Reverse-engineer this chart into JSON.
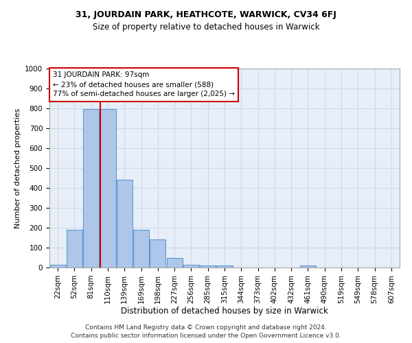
{
  "title_line1": "31, JOURDAIN PARK, HEATHCOTE, WARWICK, CV34 6FJ",
  "title_line2": "Size of property relative to detached houses in Warwick",
  "xlabel": "Distribution of detached houses by size in Warwick",
  "ylabel": "Number of detached properties",
  "footer_line1": "Contains HM Land Registry data © Crown copyright and database right 2024.",
  "footer_line2": "Contains public sector information licensed under the Open Government Licence v3.0.",
  "categories": [
    "22sqm",
    "52sqm",
    "81sqm",
    "110sqm",
    "139sqm",
    "169sqm",
    "198sqm",
    "227sqm",
    "256sqm",
    "285sqm",
    "315sqm",
    "344sqm",
    "373sqm",
    "402sqm",
    "432sqm",
    "461sqm",
    "490sqm",
    "519sqm",
    "549sqm",
    "578sqm",
    "607sqm"
  ],
  "values": [
    15,
    190,
    795,
    795,
    440,
    190,
    140,
    50,
    15,
    10,
    10,
    0,
    0,
    0,
    0,
    10,
    0,
    0,
    0,
    0,
    0
  ],
  "bar_color": "#aec6e8",
  "bar_edge_color": "#5b9bd5",
  "grid_color": "#d0d8e8",
  "background_color": "#e8eef8",
  "property_label": "31 JOURDAIN PARK: 97sqm",
  "property_line2": "← 23% of detached houses are smaller (588)",
  "property_line3": "77% of semi-detached houses are larger (2,025) →",
  "annotation_box_color": "#cc0000",
  "vline_color": "#cc0000",
  "vline_x": 2.55,
  "ylim": [
    0,
    1000
  ],
  "yticks": [
    0,
    100,
    200,
    300,
    400,
    500,
    600,
    700,
    800,
    900,
    1000
  ],
  "title1_fontsize": 9,
  "title2_fontsize": 8.5,
  "ylabel_fontsize": 8,
  "xlabel_fontsize": 8.5,
  "tick_fontsize": 7.5,
  "footer_fontsize": 6.5
}
